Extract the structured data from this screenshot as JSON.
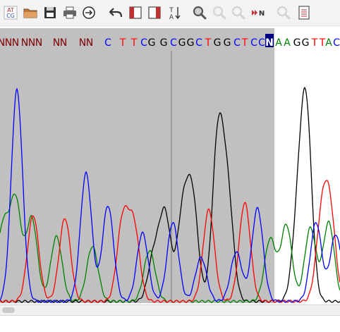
{
  "toolbar": {
    "buttons": [
      {
        "name": "sequence-format-button",
        "icon": "atcg-icon",
        "label_top": "AT",
        "label_bottom": "CG",
        "enabled": true
      },
      {
        "name": "open-button",
        "icon": "folder-icon",
        "enabled": true
      },
      {
        "name": "save-button",
        "icon": "save-icon",
        "enabled": true
      },
      {
        "name": "print-button",
        "icon": "printer-icon",
        "enabled": true
      },
      {
        "name": "go-to-button",
        "icon": "circle-arrow-icon",
        "enabled": true
      },
      {
        "name": "undo-button",
        "icon": "undo-arrow-icon",
        "enabled": true
      },
      {
        "name": "trim-left-button",
        "icon": "left-bracket-icon",
        "enabled": true
      },
      {
        "name": "trim-right-button",
        "icon": "right-bracket-icon",
        "enabled": true
      },
      {
        "name": "reverse-complement-button",
        "icon": "reverse-complement-icon",
        "label_top": "T",
        "label_bottom": "A",
        "enabled": true
      },
      {
        "name": "zoom-button",
        "icon": "magnifier-icon",
        "enabled": true
      },
      {
        "name": "zoom-in-button",
        "icon": "magnifier-plus-icon",
        "enabled": false
      },
      {
        "name": "zoom-out-button",
        "icon": "magnifier-minus-icon",
        "enabled": false
      },
      {
        "name": "next-n-button",
        "icon": "fast-forward-icon",
        "label": "N",
        "enabled": true
      },
      {
        "name": "find-button",
        "icon": "search-icon",
        "enabled": false
      },
      {
        "name": "report-button",
        "icon": "document-icon",
        "enabled": true
      }
    ]
  },
  "sequence": {
    "bases": [
      "N",
      "N",
      "N",
      "N",
      "N",
      "N",
      "N",
      "N",
      "N",
      "N",
      "C",
      "T",
      "T",
      "C",
      "G",
      "G",
      "C",
      "G",
      "G",
      "C",
      "T",
      "G",
      "G",
      "C",
      "T",
      "C",
      "C",
      "N",
      "A",
      "A",
      "G",
      "G",
      "T",
      "T",
      "A",
      "C"
    ],
    "selected_index": 27
  },
  "colors": {
    "A": "#008000",
    "C": "#0000ff",
    "G": "#000000",
    "T": "#ff0000",
    "N": "#800000",
    "quality_region": "#c0c0c0",
    "cursor": "#7a7a7a",
    "selected_bg": "#000080",
    "selected_fg": "#ffffff"
  },
  "chart_data": {
    "type": "line",
    "series": [
      {
        "base": "C",
        "peaks": [
          [
            24,
            300
          ],
          [
            122,
            182
          ],
          [
            153,
            136
          ],
          [
            202,
            97
          ],
          [
            245,
            112
          ],
          [
            285,
            62
          ],
          [
            335,
            70
          ],
          [
            365,
            132
          ],
          [
            448,
            112
          ],
          [
            476,
            95
          ]
        ]
      },
      {
        "base": "A",
        "peaks": [
          [
            4,
            105
          ],
          [
            22,
            142
          ],
          [
            45,
            118
          ],
          [
            80,
            92
          ],
          [
            131,
            78
          ],
          [
            212,
            72
          ],
          [
            383,
            88
          ],
          [
            406,
            108
          ],
          [
            440,
            104
          ],
          [
            466,
            112
          ]
        ]
      },
      {
        "base": "T",
        "peaks": [
          [
            47,
            122
          ],
          [
            92,
            118
          ],
          [
            174,
            114
          ],
          [
            190,
            104
          ],
          [
            296,
            130
          ],
          [
            347,
            140
          ],
          [
            456,
            110
          ],
          [
            468,
            118
          ]
        ]
      },
      {
        "base": "G",
        "peaks": [
          [
            218,
            64
          ],
          [
            234,
            122
          ],
          [
            259,
            120
          ],
          [
            273,
            140
          ],
          [
            309,
            228
          ],
          [
            323,
            140
          ],
          [
            422,
            102
          ],
          [
            434,
            264
          ]
        ]
      }
    ]
  }
}
